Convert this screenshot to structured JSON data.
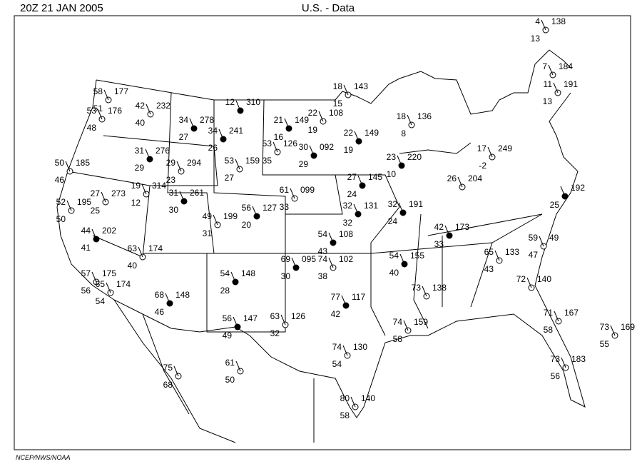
{
  "header": {
    "time": "20Z   21 JAN  2005",
    "title": "U.S. -  Data"
  },
  "footer": {
    "credit": "NCEP/NWS/NOAA"
  },
  "stations": [
    {
      "temp": "4",
      "dew": "13",
      "pressure": "138"
    },
    {
      "temp": "7",
      "pressure": "184"
    },
    {
      "temp": "11",
      "dew": "13",
      "pressure": "191"
    },
    {
      "temp": "58",
      "dew": "51",
      "pressure": "177"
    },
    {
      "temp": "53",
      "dew": "48",
      "pressure": "176"
    },
    {
      "temp": "42",
      "dew": "40",
      "pressure": "232"
    },
    {
      "temp": "34",
      "dew": "27",
      "pressure": "278"
    },
    {
      "temp": "34",
      "dew": "26",
      "pressure": "241"
    },
    {
      "temp": "12",
      "pressure": "310"
    },
    {
      "temp": "21",
      "dew": "16",
      "pressure": "149"
    },
    {
      "temp": "22",
      "dew": "19",
      "pressure": "108"
    },
    {
      "temp": "18",
      "dew": "15",
      "pressure": "143"
    },
    {
      "temp": "22",
      "dew": "19",
      "pressure": "149"
    },
    {
      "temp": "30",
      "dew": "29",
      "pressure": "092"
    },
    {
      "temp": "18",
      "dew": "8",
      "pressure": "136"
    },
    {
      "temp": "50",
      "dew": "46",
      "pressure": "185"
    },
    {
      "temp": "31",
      "dew": "29",
      "pressure": "276"
    },
    {
      "temp": "29",
      "dew": "23",
      "pressure": "294"
    },
    {
      "temp": "19",
      "dew": "12",
      "pressure": "314"
    },
    {
      "temp": "53",
      "dew": "27",
      "pressure": "159"
    },
    {
      "temp": "53",
      "dew": "35",
      "pressure": "126"
    },
    {
      "temp": "31",
      "dew": "30",
      "pressure": "261"
    },
    {
      "temp": "27",
      "dew": "25",
      "pressure": "273"
    },
    {
      "temp": "52",
      "dew": "50",
      "pressure": "195"
    },
    {
      "temp": "44",
      "dew": "41",
      "pressure": "202"
    },
    {
      "temp": "49",
      "dew": "31",
      "pressure": "199"
    },
    {
      "temp": "56",
      "dew": "20",
      "pressure": "127"
    },
    {
      "temp": "61",
      "dew": "33",
      "pressure": "099"
    },
    {
      "temp": "27",
      "dew": "24",
      "pressure": "145"
    },
    {
      "temp": "32",
      "dew": "32",
      "pressure": "131"
    },
    {
      "temp": "32",
      "dew": "24",
      "pressure": "191"
    },
    {
      "temp": "42",
      "dew": "33",
      "pressure": "173"
    },
    {
      "temp": "54",
      "dew": "43",
      "pressure": "108"
    },
    {
      "temp": "63",
      "dew": "40",
      "pressure": "174"
    },
    {
      "temp": "57",
      "dew": "56",
      "pressure": "175"
    },
    {
      "temp": "65",
      "dew": "54",
      "pressure": "174"
    },
    {
      "temp": "68",
      "dew": "46",
      "pressure": "148"
    },
    {
      "temp": "54",
      "dew": "28",
      "pressure": "148"
    },
    {
      "temp": "69",
      "dew": "30",
      "pressure": "095"
    },
    {
      "temp": "74",
      "dew": "38",
      "pressure": "102"
    },
    {
      "temp": "77",
      "dew": "42",
      "pressure": "117"
    },
    {
      "temp": "54",
      "dew": "40",
      "pressure": "155"
    },
    {
      "temp": "73",
      "pressure": "138"
    },
    {
      "temp": "59",
      "dew": "47",
      "pressure": "49"
    },
    {
      "temp": "65",
      "dew": "43",
      "pressure": "133"
    },
    {
      "temp": "72",
      "pressure": "140"
    },
    {
      "temp": "56",
      "dew": "49",
      "pressure": "147"
    },
    {
      "temp": "63",
      "dew": "32",
      "pressure": "126"
    },
    {
      "temp": "61",
      "dew": "50"
    },
    {
      "temp": "74",
      "dew": "54",
      "pressure": "130"
    },
    {
      "temp": "80",
      "dew": "58",
      "pressure": "140"
    },
    {
      "temp": "74",
      "dew": "58",
      "pressure": "159"
    },
    {
      "temp": "71",
      "dew": "58",
      "pressure": "167"
    },
    {
      "temp": "73",
      "dew": "56",
      "pressure": "183"
    },
    {
      "temp": "73",
      "dew": "55",
      "pressure": "169"
    },
    {
      "dew": "25",
      "pressure": "192"
    },
    {
      "temp": "17",
      "dew": "-2",
      "pressure": "249"
    },
    {
      "temp": "23",
      "dew": "10",
      "pressure": "220"
    },
    {
      "temp": "75",
      "dew": "68"
    },
    {
      "temp": "26",
      "pressure": "204"
    }
  ]
}
